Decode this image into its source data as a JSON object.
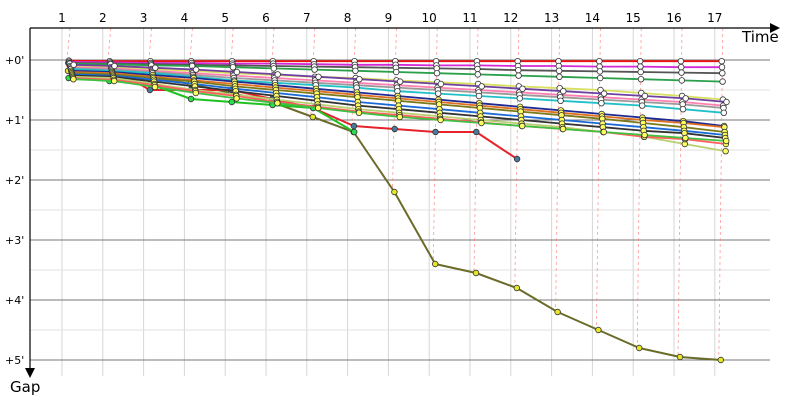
{
  "chart_data": {
    "type": "line",
    "title": "",
    "xlabel": "Time",
    "ylabel": "Gap",
    "x_ticks": [
      "1",
      "2",
      "3",
      "4",
      "5",
      "6",
      "7",
      "8",
      "9",
      "10",
      "11",
      "12",
      "13",
      "14",
      "15",
      "16",
      "17"
    ],
    "y_ticks": [
      "+0'",
      "+1'",
      "+2'",
      "+3'",
      "+4'",
      "+5'"
    ],
    "xlim": [
      0,
      17.8
    ],
    "ylim": [
      0,
      5.3
    ],
    "grid": true,
    "legend": "none",
    "series": [
      {
        "color": "#6b6b2a",
        "values": [
          0.18,
          0.22,
          0.28,
          0.4,
          0.55,
          0.7,
          0.95,
          1.2,
          2.2,
          3.4,
          3.55,
          3.8,
          4.2,
          4.5,
          4.8,
          4.95,
          5.0
        ],
        "marker": "#e6e625"
      },
      {
        "color": "#e6222a",
        "values": [
          0.05,
          0.1,
          0.5,
          0.5,
          0.5,
          0.65,
          0.8,
          1.1,
          1.15,
          1.2,
          1.2,
          1.65
        ],
        "marker": "#4a7a9a"
      },
      {
        "color": "#1fc21f",
        "values": [
          0.3,
          0.35,
          0.4,
          0.65,
          0.7,
          0.75,
          0.8,
          1.2
        ],
        "marker": "#2ae04a"
      },
      {
        "color": "#ee1111",
        "values": [
          0.01,
          0.02,
          0.02,
          0.02,
          0.02,
          0.02,
          0.02,
          0.02,
          0.02,
          0.02,
          0.02,
          0.02,
          0.02,
          0.02,
          0.02,
          0.02,
          0.02
        ],
        "marker": "#ffffff"
      },
      {
        "color": "#d22ad6",
        "values": [
          0.03,
          0.04,
          0.05,
          0.05,
          0.06,
          0.06,
          0.07,
          0.08,
          0.08,
          0.09,
          0.09,
          0.1,
          0.1,
          0.11,
          0.11,
          0.12,
          0.12
        ],
        "marker": "#ffffff"
      },
      {
        "color": "#555555",
        "values": [
          0.05,
          0.06,
          0.07,
          0.08,
          0.09,
          0.1,
          0.11,
          0.12,
          0.13,
          0.14,
          0.15,
          0.17,
          0.18,
          0.19,
          0.2,
          0.21,
          0.22
        ],
        "marker": "#ffffff"
      },
      {
        "color": "#2aa04a",
        "values": [
          0.06,
          0.07,
          0.09,
          0.1,
          0.12,
          0.14,
          0.16,
          0.18,
          0.2,
          0.22,
          0.24,
          0.26,
          0.28,
          0.3,
          0.32,
          0.34,
          0.36
        ],
        "marker": "#ffffff"
      },
      {
        "color": "#d8e060",
        "values": [
          0.1,
          0.12,
          0.15,
          0.18,
          0.22,
          0.25,
          0.28,
          0.3,
          0.34,
          0.37,
          0.4,
          0.44,
          0.47,
          0.5,
          0.55,
          0.6,
          0.66
        ],
        "marker": "#ffffff"
      },
      {
        "color": "#ff80b0",
        "values": [
          0.12,
          0.14,
          0.18,
          0.22,
          0.26,
          0.3,
          0.34,
          0.38,
          0.42,
          0.46,
          0.5,
          0.54,
          0.58,
          0.62,
          0.66,
          0.7,
          0.76
        ],
        "marker": "#ffffff"
      },
      {
        "color": "#9a9a9a",
        "values": [
          0.14,
          0.16,
          0.2,
          0.25,
          0.3,
          0.34,
          0.38,
          0.42,
          0.46,
          0.5,
          0.54,
          0.58,
          0.62,
          0.66,
          0.7,
          0.74,
          0.8
        ],
        "marker": "#ffffff"
      },
      {
        "color": "#20c0c8",
        "values": [
          0.15,
          0.18,
          0.22,
          0.28,
          0.34,
          0.38,
          0.42,
          0.46,
          0.52,
          0.56,
          0.6,
          0.64,
          0.68,
          0.72,
          0.76,
          0.82,
          0.88
        ],
        "marker": "#ffffff"
      },
      {
        "color": "#1e2a90",
        "values": [
          0.18,
          0.2,
          0.25,
          0.3,
          0.36,
          0.42,
          0.48,
          0.54,
          0.6,
          0.66,
          0.72,
          0.78,
          0.84,
          0.9,
          0.96,
          1.02,
          1.1
        ],
        "marker": "#ffff60"
      },
      {
        "color": "#e07020",
        "values": [
          0.2,
          0.22,
          0.28,
          0.34,
          0.4,
          0.46,
          0.52,
          0.58,
          0.64,
          0.7,
          0.76,
          0.82,
          0.88,
          0.94,
          1.0,
          1.05,
          1.12
        ],
        "marker": "#ffff60"
      },
      {
        "color": "#7a7a1a",
        "values": [
          0.22,
          0.24,
          0.3,
          0.36,
          0.44,
          0.5,
          0.56,
          0.62,
          0.68,
          0.74,
          0.8,
          0.86,
          0.92,
          0.98,
          1.05,
          1.12,
          1.2
        ],
        "marker": "#ffff60"
      },
      {
        "color": "#1a6ad6",
        "values": [
          0.24,
          0.26,
          0.33,
          0.4,
          0.48,
          0.55,
          0.62,
          0.7,
          0.76,
          0.82,
          0.88,
          0.94,
          1.0,
          1.06,
          1.12,
          1.18,
          1.25
        ],
        "marker": "#ffff60"
      },
      {
        "color": "#333333",
        "values": [
          0.26,
          0.28,
          0.36,
          0.44,
          0.52,
          0.6,
          0.68,
          0.76,
          0.82,
          0.88,
          0.94,
          1.0,
          1.06,
          1.12,
          1.18,
          1.22,
          1.3
        ],
        "marker": "#ffff60"
      },
      {
        "color": "#b8d070",
        "values": [
          0.28,
          0.3,
          0.4,
          0.5,
          0.58,
          0.66,
          0.74,
          0.82,
          0.88,
          0.94,
          1.0,
          1.06,
          1.12,
          1.2,
          1.28,
          1.4,
          1.52
        ],
        "marker": "#ffff60"
      },
      {
        "color": "#ff6060",
        "values": [
          0.3,
          0.33,
          0.42,
          0.52,
          0.6,
          0.7,
          0.78,
          0.86,
          0.92,
          0.98,
          1.04,
          1.1,
          1.15,
          1.2,
          1.28,
          1.32,
          1.4
        ],
        "marker": "#ffff60"
      },
      {
        "color": "#40c040",
        "values": [
          0.32,
          0.35,
          0.45,
          0.55,
          0.64,
          0.72,
          0.8,
          0.88,
          0.95,
          1.0,
          1.05,
          1.1,
          1.15,
          1.2,
          1.25,
          1.3,
          1.35
        ],
        "marker": "#ffff60"
      },
      {
        "color": "#7040a0",
        "values": [
          0.08,
          0.1,
          0.13,
          0.16,
          0.2,
          0.24,
          0.28,
          0.32,
          0.36,
          0.4,
          0.44,
          0.48,
          0.52,
          0.56,
          0.6,
          0.64,
          0.7
        ],
        "marker": "#ffffff"
      }
    ]
  }
}
